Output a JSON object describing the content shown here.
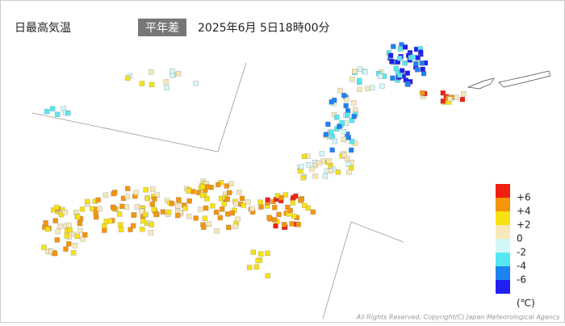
{
  "header": {
    "title": "日最高気温",
    "badge": "平年差",
    "datetime": "2025年6月 5日18時00分"
  },
  "legend": {
    "labels": [
      "+6",
      "+4",
      "+2",
      "0",
      "-2",
      "-4",
      "-6"
    ],
    "colors": [
      "#f02010",
      "#f5950a",
      "#f8e214",
      "#f6e8b8",
      "#d2f7f7",
      "#55e8f2",
      "#1e82f0",
      "#2020f0"
    ],
    "unit": "(℃)"
  },
  "footer": {
    "copyright": "All Rights Reserved, Copyright(C) Japan Meteorological Agency"
  }
}
